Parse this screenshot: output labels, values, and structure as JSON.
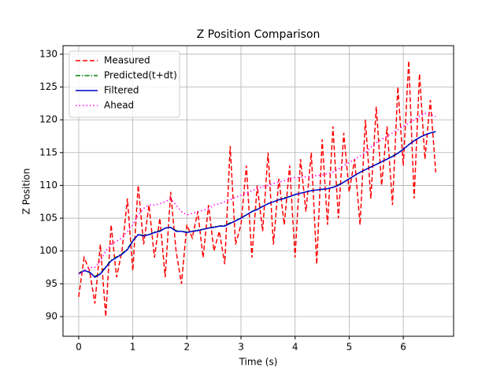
{
  "chart_data": {
    "type": "line",
    "title": "Z Position Comparison",
    "x_label": "Time (s)",
    "y_label": "Z Position",
    "x": [
      0,
      0.1,
      0.2,
      0.3,
      0.4,
      0.5,
      0.6,
      0.7,
      0.8,
      0.9,
      1,
      1.1,
      1.2,
      1.3,
      1.4,
      1.5,
      1.6,
      1.7,
      1.8,
      1.9,
      2,
      2.1,
      2.2,
      2.3,
      2.4,
      2.5,
      2.6,
      2.7,
      2.8,
      2.9,
      3,
      3.1,
      3.2,
      3.3,
      3.4,
      3.5,
      3.6,
      3.7,
      3.8,
      3.9,
      4,
      4.1,
      4.2,
      4.3,
      4.4,
      4.5,
      4.6,
      4.7,
      4.8,
      4.9,
      5,
      5.1,
      5.2,
      5.3,
      5.4,
      5.5,
      5.6,
      5.7,
      5.8,
      5.9,
      6,
      6.1,
      6.2,
      6.3,
      6.4,
      6.5,
      6.6
    ],
    "series": [
      {
        "name": "Measured",
        "color": "#ff0000",
        "linestyle": "dashed",
        "values": [
          93,
          99,
          97,
          92,
          101,
          90,
          104,
          96,
          100,
          108,
          97,
          110,
          101,
          107,
          99,
          105,
          96,
          109,
          100,
          95,
          104,
          102,
          106,
          99,
          107,
          100,
          103,
          98,
          116,
          101,
          104,
          113,
          99,
          110,
          103,
          115,
          101,
          111,
          104,
          113,
          99,
          114,
          106,
          115,
          98,
          117,
          104,
          119,
          105,
          118,
          109,
          114,
          104,
          120,
          108,
          122,
          110,
          119,
          107,
          125,
          113,
          129,
          108,
          127,
          114,
          123,
          112
        ]
      },
      {
        "name": "Predicted(t+dt)",
        "color": "#008000",
        "linestyle": "dashdot",
        "values": [
          96.6,
          97.1,
          96.7,
          96.1,
          96.6,
          97.6,
          98.6,
          99.1,
          99.6,
          100.3,
          101.6,
          102.5,
          102.4,
          102.5,
          102.9,
          103.1,
          103.5,
          103.6,
          103.1,
          103,
          102.9,
          103,
          103.2,
          103.3,
          103.5,
          103.7,
          103.8,
          103.9,
          104.3,
          104.6,
          105.1,
          105.5,
          106,
          106.4,
          106.8,
          107.2,
          107.5,
          107.8,
          108.1,
          108.3,
          108.6,
          108.8,
          109,
          109.2,
          109.3,
          109.4,
          109.5,
          109.7,
          110.1,
          110.5,
          111,
          111.5,
          112,
          112.4,
          112.8,
          113.2,
          113.6,
          114,
          114.5,
          114.9,
          115.5,
          116.2,
          116.8,
          117.3,
          117.7,
          118,
          118.2
        ]
      },
      {
        "name": "Filtered",
        "color": "#0000cc",
        "linestyle": "solid",
        "values": [
          96.5,
          97,
          96.8,
          96,
          96.5,
          97.5,
          98.5,
          99,
          99.5,
          100.2,
          101.5,
          102.5,
          102.3,
          102.5,
          102.8,
          103,
          103.5,
          103.6,
          103,
          103,
          102.8,
          103,
          103.1,
          103.3,
          103.5,
          103.6,
          103.8,
          103.8,
          104.2,
          104.6,
          105,
          105.5,
          106,
          106.3,
          106.8,
          107.2,
          107.5,
          107.8,
          108,
          108.3,
          108.6,
          108.8,
          109,
          109.2,
          109.3,
          109.4,
          109.5,
          109.7,
          110,
          110.5,
          111,
          111.5,
          112,
          112.4,
          112.8,
          113.2,
          113.6,
          114,
          114.4,
          114.9,
          115.5,
          116.2,
          116.8,
          117.3,
          117.7,
          118,
          118.2
        ]
      },
      {
        "name": "Ahead",
        "color": "#ff00ff",
        "linestyle": "dotted",
        "values": [
          96.5,
          97,
          97.5,
          97.5,
          98.5,
          100,
          101,
          101.5,
          102,
          103,
          104,
          105.5,
          106.5,
          107,
          107,
          107.2,
          107.5,
          108,
          107,
          106,
          105.5,
          105.7,
          106,
          106.2,
          106.5,
          107,
          107.2,
          107.5,
          107.8,
          108.2,
          108.5,
          108.8,
          109.2,
          109.5,
          109.8,
          110,
          110.3,
          110.5,
          110.7,
          111,
          111.2,
          111.2,
          111.3,
          111.4,
          111.5,
          111.6,
          111.8,
          112,
          112.5,
          113,
          113.5,
          114,
          114.5,
          115,
          115.8,
          116.5,
          117,
          117.5,
          118,
          118.5,
          119,
          119.5,
          120,
          120.5,
          121,
          120.8,
          120.5
        ]
      }
    ],
    "xlim": [
      -0.29,
      6.93
    ],
    "ylim": [
      87.0,
      131.3
    ],
    "xticks": [
      0,
      1,
      2,
      3,
      4,
      5,
      6
    ],
    "yticks": [
      90,
      95,
      100,
      105,
      110,
      115,
      120,
      125,
      130
    ],
    "grid": true,
    "legend": "upper left"
  }
}
